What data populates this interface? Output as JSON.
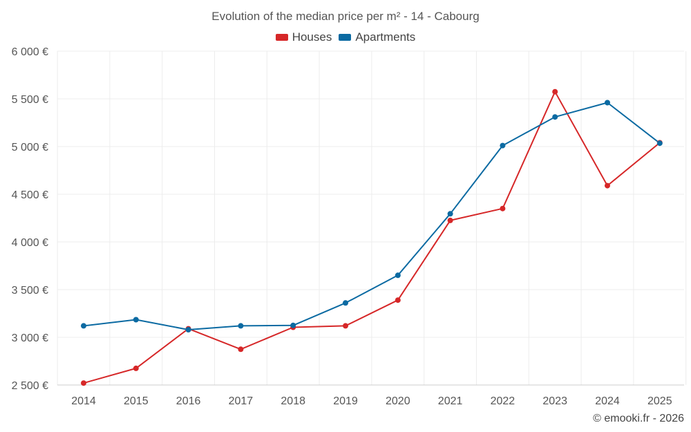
{
  "chart_data": {
    "type": "line",
    "title": "Evolution of the median price per m² - 14 - Cabourg",
    "categories": [
      "2014",
      "2015",
      "2016",
      "2017",
      "2018",
      "2019",
      "2020",
      "2021",
      "2022",
      "2023",
      "2024",
      "2025"
    ],
    "series": [
      {
        "name": "Houses",
        "color": "#d62728",
        "values": [
          2520,
          2675,
          3090,
          2875,
          3105,
          3120,
          3390,
          4225,
          4350,
          5575,
          4590,
          5040
        ]
      },
      {
        "name": "Apartments",
        "color": "#0b6aa2",
        "values": [
          3120,
          3185,
          3080,
          3120,
          3125,
          3360,
          3650,
          4295,
          5010,
          5310,
          5460,
          5035
        ]
      }
    ],
    "ylim": [
      2500,
      6000
    ],
    "yticks": [
      2500,
      3000,
      3500,
      4000,
      4500,
      5000,
      5500,
      6000
    ],
    "ytick_labels": [
      "2 500 €",
      "3 000 €",
      "3 500 €",
      "4 000 €",
      "4 500 €",
      "5 000 €",
      "5 500 €",
      "6 000 €"
    ],
    "xlabel": "",
    "ylabel": "",
    "grid": true,
    "legend_position": "top-center"
  },
  "credit": "© emooki.fr - 2026"
}
